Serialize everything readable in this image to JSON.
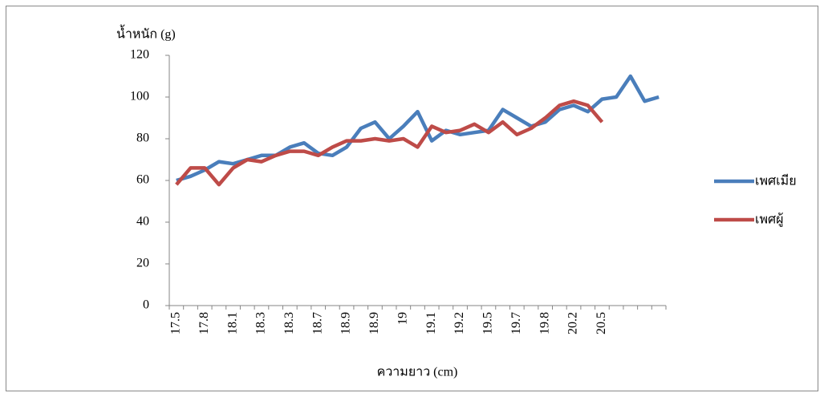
{
  "chart_data": {
    "type": "line",
    "y_label": "น้ำหนัก (g)",
    "x_label": "ความยาว (cm)",
    "categories": [
      "17.5",
      null,
      "17.8",
      null,
      "18.1",
      null,
      "18.3",
      null,
      "18.3",
      null,
      "18.7",
      null,
      "18.9",
      null,
      "18.9",
      null,
      "19",
      null,
      "19.1",
      null,
      "19.2",
      null,
      "19.5",
      null,
      "19.7",
      null,
      "19.8",
      null,
      "20.2",
      null,
      "20.5",
      null,
      null,
      null,
      null
    ],
    "series": [
      {
        "name": "เพศเมีย",
        "color": "#4a7ebb",
        "values": [
          60,
          62,
          65,
          69,
          68,
          70,
          72,
          72,
          76,
          78,
          73,
          72,
          76,
          85,
          88,
          80,
          86,
          93,
          79,
          84,
          82,
          83,
          84,
          94,
          90,
          86,
          88,
          94,
          96,
          93,
          99,
          100,
          110,
          98,
          100
        ]
      },
      {
        "name": "เพศผู้",
        "color": "#be4b48",
        "values": [
          58,
          66,
          66,
          58,
          66,
          70,
          69,
          72,
          74,
          74,
          72,
          76,
          79,
          79,
          80,
          79,
          80,
          76,
          86,
          83,
          84,
          87,
          83,
          88,
          82,
          85,
          90,
          96,
          98,
          96,
          88,
          null,
          null,
          null,
          null
        ]
      }
    ],
    "ylim": [
      0,
      120
    ],
    "yticks": [
      0,
      20,
      40,
      60,
      80,
      100,
      120
    ],
    "grid": false,
    "legend": "right"
  }
}
